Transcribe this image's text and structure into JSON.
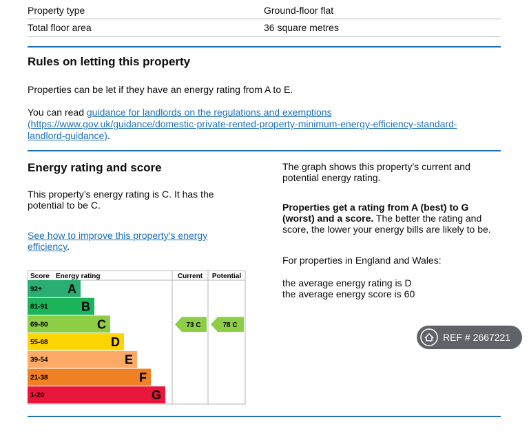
{
  "summary_table": {
    "rows": [
      [
        "Property type",
        "Ground-floor flat"
      ],
      [
        "Total floor area",
        "36 square metres"
      ]
    ]
  },
  "letting": {
    "title": "Rules on letting this property",
    "text": "Properties can be let if they have an energy rating from A to E.",
    "read_prefix": "You can read ",
    "link": "guidance for landlords on the regulations and exemptions",
    "url": "(https://www.gov.uk/guidance/domestic-private-rented-property-minimum-energy-efficiency-standard-landlord-guidance)",
    "suffix": "."
  },
  "energy": {
    "title": "Energy rating and score",
    "text": "This property’s energy rating is C. It has the potential to be C.",
    "link": "See how to improve this property’s energy efficiency",
    "suffix": ".",
    "graph_intro": "The graph shows this property’s current and potential energy rating.",
    "bold": "Properties get a rating from A (best) to G (worst) and a score.",
    "explain": " The better the rating and score, the lower your energy bills are likely to be.",
    "region": "For properties in England and Wales:",
    "average_rating": "the average energy rating is D",
    "average_score": "the average energy score is 60",
    "chart": {
      "headers": [
        "Score",
        "Energy rating",
        "Current",
        "Potential"
      ],
      "bands": [
        {
          "score": "92+",
          "letter": "A",
          "color": "#2bae73"
        },
        {
          "score": "81-91",
          "letter": "B",
          "color": "#1cb45b"
        },
        {
          "score": "69-80",
          "letter": "C",
          "color": "#8dce46"
        },
        {
          "score": "55-68",
          "letter": "D",
          "color": "#ffd500"
        },
        {
          "score": "39-54",
          "letter": "E",
          "color": "#fcaa65"
        },
        {
          "score": "21-38",
          "letter": "F",
          "color": "#ef8023"
        },
        {
          "score": "1-20",
          "letter": "G",
          "color": "#e9153b"
        }
      ],
      "current": {
        "label": "73 C",
        "band": 2
      },
      "potential": {
        "label": "78 C",
        "band": 2
      }
    }
  },
  "badge": {
    "text": "REF # 2667221"
  }
}
